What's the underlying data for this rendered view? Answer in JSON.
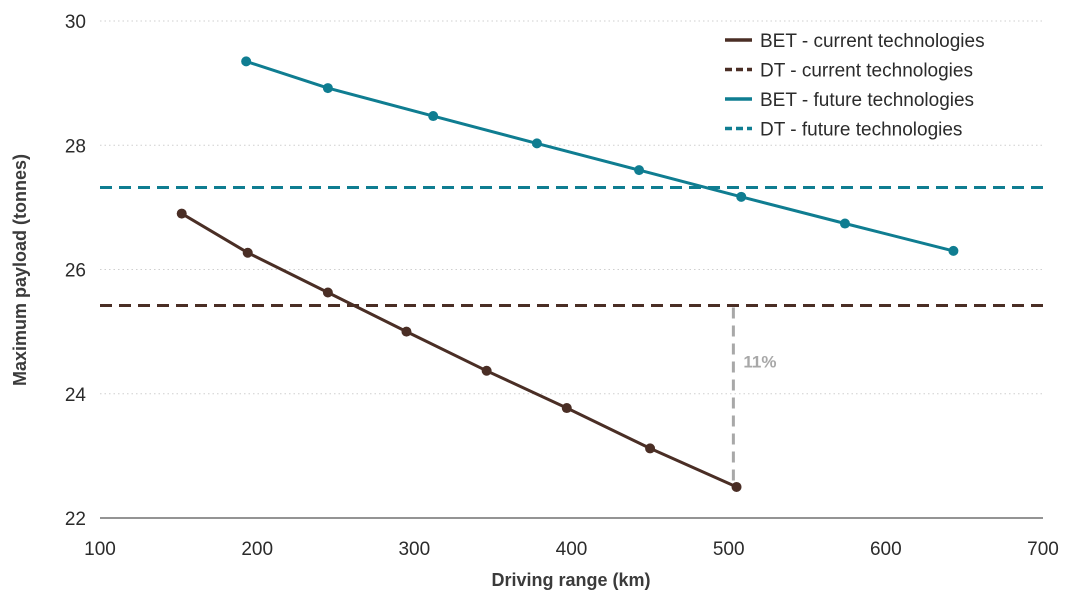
{
  "chart_data": {
    "type": "line",
    "xlabel": "Driving range (km)",
    "ylabel": "Maximum payload (tonnes)",
    "xlim": [
      100,
      700
    ],
    "ylim": [
      22,
      30
    ],
    "xticks": [
      "100",
      "200",
      "300",
      "400",
      "500",
      "600",
      "700"
    ],
    "yticks": [
      "22",
      "24",
      "26",
      "28",
      "30"
    ],
    "grid": "horizontal dotted",
    "legend_position": "top-right",
    "series": [
      {
        "name": "BET - current technologies",
        "style": "solid",
        "color": "#4a2e25",
        "points": [
          {
            "x": 152,
            "y": 26.9
          },
          {
            "x": 194,
            "y": 26.27
          },
          {
            "x": 245,
            "y": 25.63
          },
          {
            "x": 295,
            "y": 25.0
          },
          {
            "x": 346,
            "y": 24.37
          },
          {
            "x": 397,
            "y": 23.77
          },
          {
            "x": 450,
            "y": 23.12
          },
          {
            "x": 505,
            "y": 22.5
          }
        ]
      },
      {
        "name": "DT - current technologies",
        "style": "dashed",
        "color": "#4a2e25",
        "points": [
          {
            "x": 100,
            "y": 25.42
          },
          {
            "x": 700,
            "y": 25.42
          }
        ]
      },
      {
        "name": "BET - future technologies",
        "style": "solid",
        "color": "#0f7d91",
        "points": [
          {
            "x": 193,
            "y": 29.35
          },
          {
            "x": 245,
            "y": 28.92
          },
          {
            "x": 312,
            "y": 28.47
          },
          {
            "x": 378,
            "y": 28.03
          },
          {
            "x": 443,
            "y": 27.6
          },
          {
            "x": 508,
            "y": 27.17
          },
          {
            "x": 574,
            "y": 26.74
          },
          {
            "x": 643,
            "y": 26.3
          }
        ]
      },
      {
        "name": "DT - future technologies",
        "style": "dashed",
        "color": "#0f7d91",
        "points": [
          {
            "x": 100,
            "y": 27.32
          },
          {
            "x": 700,
            "y": 27.32
          }
        ]
      }
    ],
    "annotations": [
      {
        "text": "11%",
        "color": "#a8a8a8",
        "x": 503,
        "y_from": 25.42,
        "y_to": 22.5
      }
    ]
  }
}
